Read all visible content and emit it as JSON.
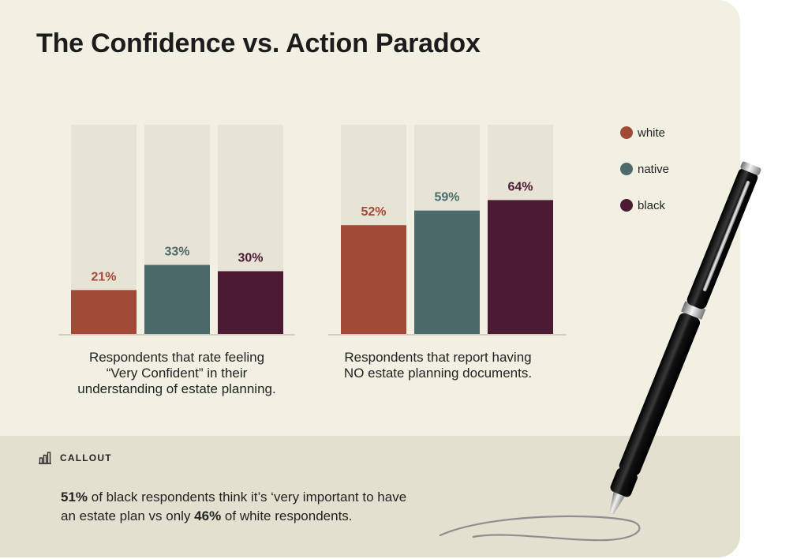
{
  "title": "The Confidence vs. Action Paradox",
  "colors": {
    "white": "#a14a38",
    "native": "#4b6a69",
    "black": "#4a1b33",
    "track": "#e7e3d5",
    "baseline": "#d4cfbd"
  },
  "legend": [
    {
      "label": "white",
      "color": "#a14a38"
    },
    {
      "label": "native",
      "color": "#4b6a69"
    },
    {
      "label": "black",
      "color": "#4a1b33"
    }
  ],
  "chart_data": [
    {
      "type": "bar",
      "categories": [
        "white",
        "native",
        "black"
      ],
      "values": [
        21,
        33,
        30
      ],
      "data_labels": [
        "21%",
        "33%",
        "30%"
      ],
      "ylim": [
        0,
        100
      ],
      "caption_lines": [
        "Respondents that rate feeling",
        "“Very Confident” in their",
        "understanding of estate planning."
      ]
    },
    {
      "type": "bar",
      "categories": [
        "white",
        "native",
        "black"
      ],
      "values": [
        52,
        59,
        64
      ],
      "data_labels": [
        "52%",
        "59%",
        "64%"
      ],
      "ylim": [
        0,
        100
      ],
      "caption_lines": [
        "Respondents that report having",
        "NO estate planning documents."
      ]
    }
  ],
  "callout": {
    "heading": "CALLOUT",
    "icon": "bar-chart-icon",
    "line1": {
      "bold": "51%",
      "text": " of black respondents think it’s ‘very important to have"
    },
    "line2": {
      "pre": "an estate plan vs only ",
      "bold": "46%",
      "post": " of white respondents."
    }
  },
  "decoration": {
    "icon": "pen-icon"
  }
}
